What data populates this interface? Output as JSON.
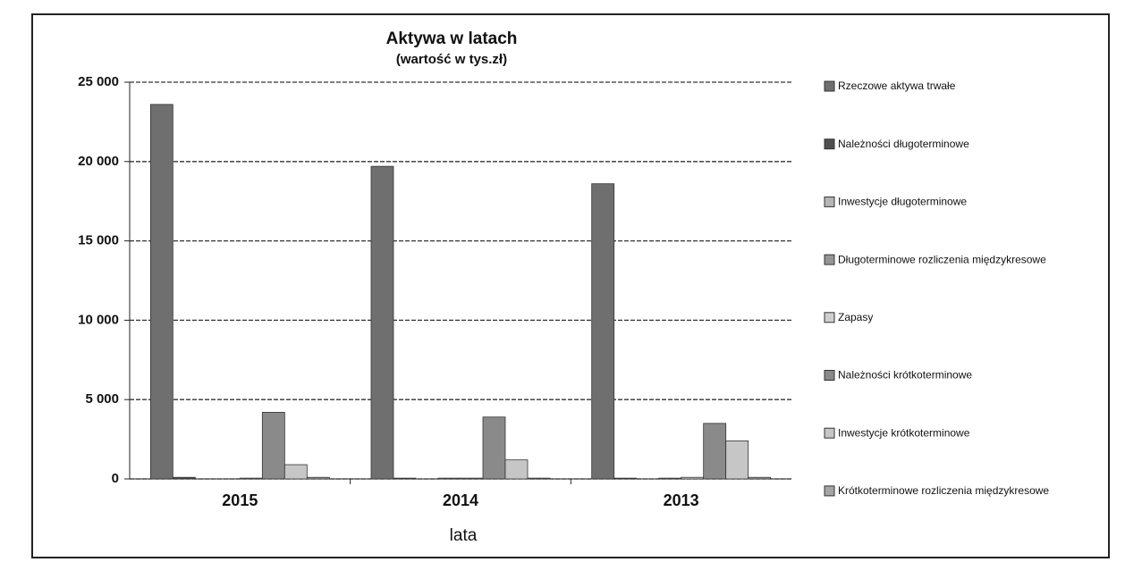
{
  "chart_data": {
    "type": "bar",
    "title": "Aktywa w latach",
    "subtitle": "(wartość w tys.zł)",
    "x_label": "lata",
    "categories": [
      "2015",
      "2014",
      "2013"
    ],
    "series": [
      {
        "name": "Rzeczowe aktywa trwałe",
        "color": "#6f6f6f",
        "values": [
          23600,
          19700,
          18600
        ]
      },
      {
        "name": "Należności długoterminowe",
        "color": "#4f4f4f",
        "values": [
          100,
          50,
          50
        ]
      },
      {
        "name": "Inwestycje długoterminowe",
        "color": "#b5b5b5",
        "values": [
          0,
          0,
          0
        ]
      },
      {
        "name": "Długoterminowe rozliczenia międzykresowe",
        "color": "#959595",
        "values": [
          0,
          50,
          50
        ]
      },
      {
        "name": "Zapasy",
        "color": "#cfcfcf",
        "values": [
          50,
          50,
          100
        ]
      },
      {
        "name": "Należności krótkoterminowe",
        "color": "#8a8a8a",
        "values": [
          4200,
          3900,
          3500
        ]
      },
      {
        "name": "Inwestycje krótkoterminowe",
        "color": "#c6c6c6",
        "values": [
          900,
          1200,
          2400
        ]
      },
      {
        "name": "Krótkoterminowe rozliczenia międzykresowe",
        "color": "#a5a5a5",
        "values": [
          100,
          50,
          100
        ]
      }
    ],
    "ylim": [
      0,
      25000
    ],
    "yticks": [
      {
        "value": 0,
        "label": "0"
      },
      {
        "value": 5000,
        "label": "5 000"
      },
      {
        "value": 10000,
        "label": "10 000"
      },
      {
        "value": 15000,
        "label": "15 000"
      },
      {
        "value": 20000,
        "label": "20 000"
      },
      {
        "value": 25000,
        "label": "25 000"
      }
    ],
    "grid": true,
    "legend": "right"
  }
}
